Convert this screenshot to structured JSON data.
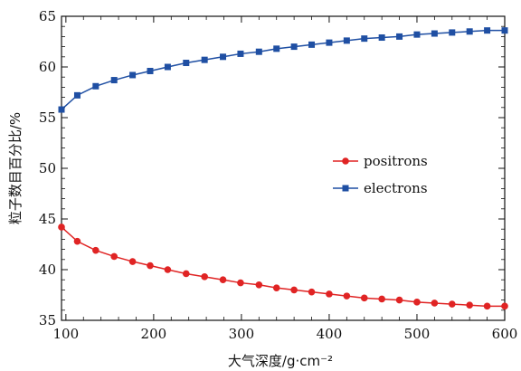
{
  "chart_data": {
    "type": "line",
    "xlabel": "大气深度/g·cm⁻²",
    "ylabel": "粒子数目百分比/%",
    "xlim": [
      95,
      600
    ],
    "ylim": [
      35,
      65
    ],
    "xticks": [
      100,
      200,
      300,
      400,
      500,
      600
    ],
    "yticks": [
      35,
      40,
      45,
      50,
      55,
      60,
      65
    ],
    "grid": false,
    "legend_position": "center-right",
    "series": [
      {
        "name": "positrons",
        "color": "#e02424",
        "marker": "circle",
        "x": [
          95,
          113,
          134,
          155,
          176,
          196,
          216,
          237,
          258,
          279,
          299,
          320,
          340,
          360,
          380,
          400,
          420,
          440,
          460,
          480,
          500,
          520,
          540,
          560,
          580,
          600
        ],
        "y": [
          44.2,
          42.8,
          41.9,
          41.3,
          40.8,
          40.4,
          40.0,
          39.6,
          39.3,
          39.0,
          38.7,
          38.5,
          38.2,
          38.0,
          37.8,
          37.6,
          37.4,
          37.2,
          37.1,
          37.0,
          36.8,
          36.7,
          36.6,
          36.5,
          36.4,
          36.4
        ]
      },
      {
        "name": "electrons",
        "color": "#1f4fa3",
        "marker": "square",
        "x": [
          95,
          113,
          134,
          155,
          176,
          196,
          216,
          237,
          258,
          279,
          299,
          320,
          340,
          360,
          380,
          400,
          420,
          440,
          460,
          480,
          500,
          520,
          540,
          560,
          580,
          600
        ],
        "y": [
          55.8,
          57.2,
          58.1,
          58.7,
          59.2,
          59.6,
          60.0,
          60.4,
          60.7,
          61.0,
          61.3,
          61.5,
          61.8,
          62.0,
          62.2,
          62.4,
          62.6,
          62.8,
          62.9,
          63.0,
          63.2,
          63.3,
          63.4,
          63.5,
          63.6,
          63.6
        ]
      }
    ]
  }
}
